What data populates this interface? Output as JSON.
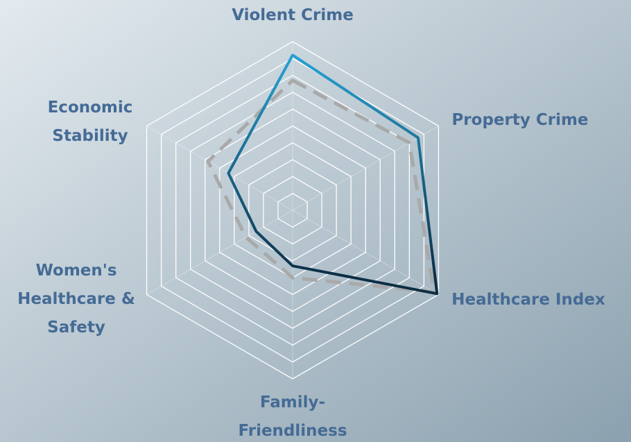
{
  "chart_data": {
    "type": "radar",
    "categories": [
      [
        "Violent Crime"
      ],
      [
        "Property Crime"
      ],
      [
        "Healthcare Index"
      ],
      [
        "Family-",
        "Friendliness"
      ],
      [
        "Women's",
        "Healthcare &",
        "Safety"
      ],
      [
        "Economic",
        "Stability"
      ]
    ],
    "rlim": [
      0,
      100
    ],
    "rticks": [
      10,
      20,
      30,
      40,
      50,
      60,
      70,
      80,
      90,
      100
    ],
    "grid": true,
    "series": [
      {
        "color": "#29a9dc",
        "color_end": "#0c2e45",
        "dash": false,
        "values": [
          92,
          86,
          99,
          33,
          25,
          44
        ]
      },
      {
        "color": "#a9a9a9",
        "dash": true,
        "values": [
          77,
          80,
          97,
          40,
          32,
          58
        ]
      }
    ]
  }
}
